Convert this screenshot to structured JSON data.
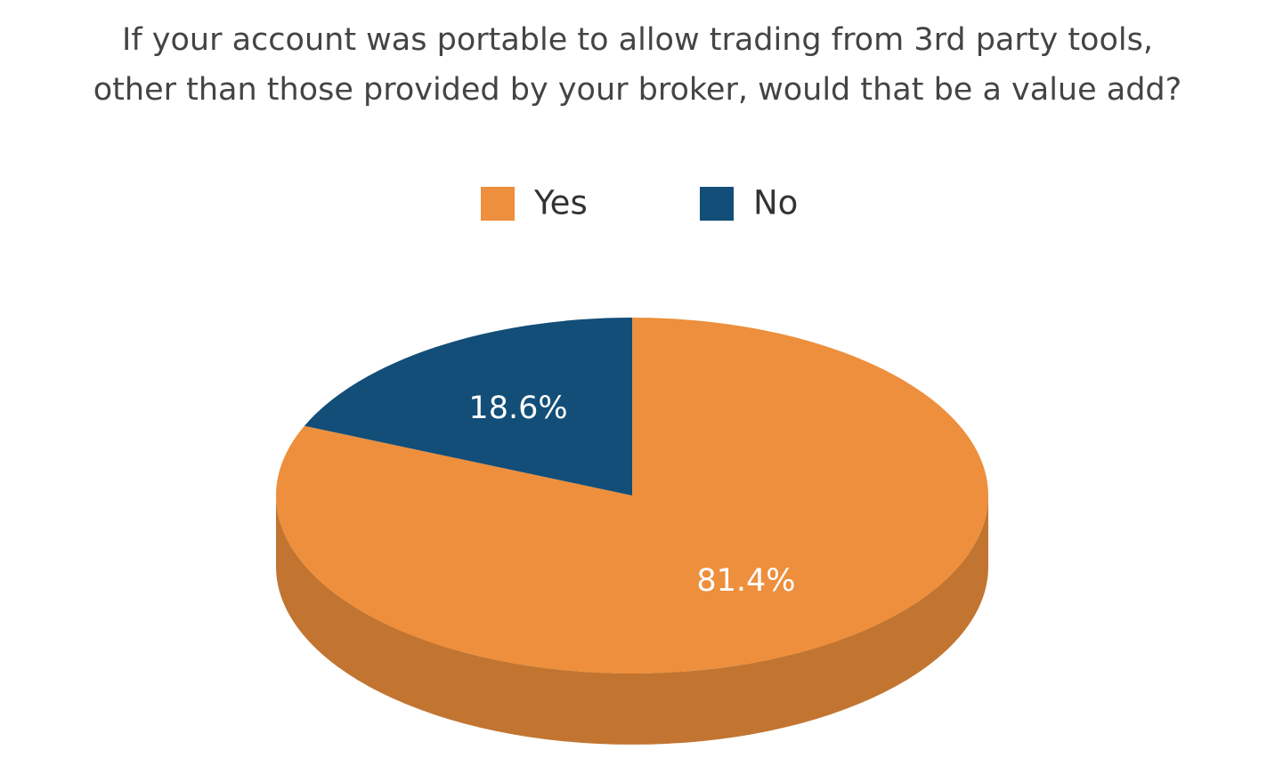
{
  "chart_data": {
    "type": "pie",
    "title": [
      "If your account was portable to allow trading from 3rd party tools,",
      "other than those provided by your broker, would that be a value add?"
    ],
    "categories": [
      "Yes",
      "No"
    ],
    "values": [
      81.4,
      18.6
    ],
    "value_labels": [
      "81.4%",
      "18.6%"
    ],
    "colors": [
      "#ed8f3c",
      "#124e78"
    ],
    "legend": "top"
  }
}
